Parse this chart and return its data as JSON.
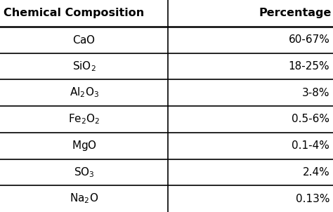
{
  "headers": [
    "Chemical Composition",
    "Percentage"
  ],
  "rows": [
    [
      "CaO",
      "60-67%"
    ],
    [
      "SiO₂",
      "18-25%"
    ],
    [
      "Al₂O₃",
      "3-8%"
    ],
    [
      "Fe₂O₂",
      "0.5-6%"
    ],
    [
      "MgO",
      "0.1-4%"
    ],
    [
      "SO₃",
      "2.4%"
    ],
    [
      "Na₂O",
      "0.13%"
    ]
  ],
  "col_split": 0.505,
  "header_fontsize": 11.5,
  "cell_fontsize": 11.0,
  "bg_color": "#ffffff",
  "line_color": "#000000",
  "text_color": "#000000",
  "formula_mathtext": [
    "$\\mathrm{CaO}$",
    "$\\mathrm{SiO_2}$",
    "$\\mathrm{Al_2O_3}$",
    "$\\mathrm{Fe_2O_2}$",
    "$\\mathrm{MgO}$",
    "$\\mathrm{SO_3}$",
    "$\\mathrm{Na_2O}$"
  ]
}
